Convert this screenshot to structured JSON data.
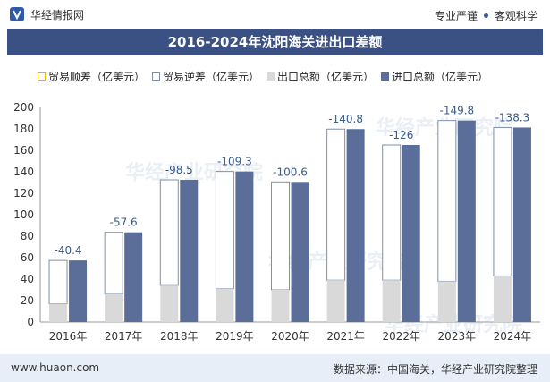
{
  "header": {
    "brand": "华经情报网",
    "tag1": "专业严谨",
    "tag2": "客观科学"
  },
  "watermark": "华经产业研究院",
  "chart_data": {
    "type": "bar",
    "title": "2016-2024年沈阳海关进出口差额",
    "categories": [
      "2016年",
      "2017年",
      "2018年",
      "2019年",
      "2020年",
      "2021年",
      "2022年",
      "2023年",
      "2024年"
    ],
    "series": [
      {
        "name": "贸易顺差（亿美元）",
        "values": [
          null,
          null,
          null,
          null,
          null,
          null,
          null,
          null,
          null
        ],
        "color": "#e8b400"
      },
      {
        "name": "贸易逆差（亿美元）",
        "values": [
          -40.4,
          -57.6,
          -98.5,
          -109.3,
          -100.6,
          -140.8,
          -126,
          -149.8,
          -138.3
        ],
        "color": "#7d8fb3"
      },
      {
        "name": "出口总额（亿美元）",
        "values": [
          17,
          26,
          34,
          31,
          30,
          39,
          39,
          38,
          43
        ],
        "color": "#d9d9d9"
      },
      {
        "name": "进口总额（亿美元）",
        "values": [
          57.4,
          83.6,
          132.5,
          140.3,
          130.6,
          179.8,
          165,
          187.8,
          181.3
        ],
        "color": "#5b6e99"
      }
    ],
    "deficit_labels": [
      "-40.4",
      "-57.6",
      "-98.5",
      "-109.3",
      "-100.6",
      "-140.8",
      "-126",
      "-149.8",
      "-138.3"
    ],
    "yticks": [
      "0",
      "20",
      "40",
      "60",
      "80",
      "100",
      "120",
      "140",
      "160",
      "180",
      "200"
    ],
    "ylim": [
      0,
      200
    ],
    "xlabel": "",
    "ylabel": ""
  },
  "footer": {
    "url": "www.huaon.com",
    "source": "数据来源：中国海关，华经产业研究院整理"
  }
}
